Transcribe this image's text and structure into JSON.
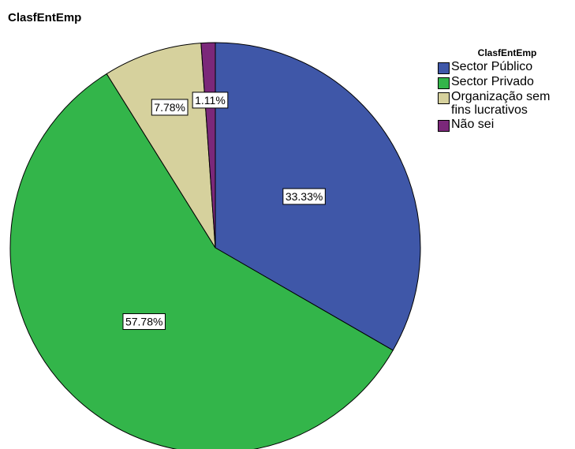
{
  "chart_data": {
    "type": "pie",
    "title": "ClasfEntEmp",
    "legend_title": "ClasfEntEmp",
    "legend_position": "right",
    "start_angle_deg": 0,
    "direction": "clockwise",
    "slices": [
      {
        "label": "Sector Público",
        "value": 33.33,
        "display": "33.33%",
        "color": "#3f57a8"
      },
      {
        "label": "Sector Privado",
        "value": 57.78,
        "display": "57.78%",
        "color": "#33b54a"
      },
      {
        "label": "Organização sem fins lucrativos",
        "value": 7.78,
        "display": "7.78%",
        "color": "#d6d19d"
      },
      {
        "label": "Não sei",
        "value": 1.11,
        "display": "1.11%",
        "color": "#7b287a"
      }
    ]
  }
}
